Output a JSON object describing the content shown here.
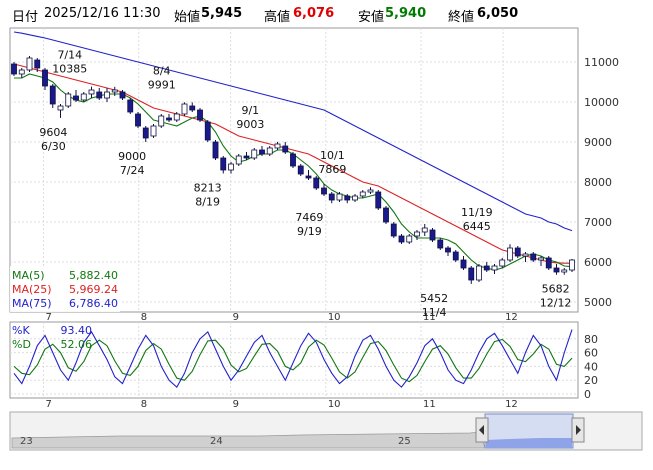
{
  "header": {
    "date_label": "日付",
    "datetime": "2025/12/16 11:30",
    "open_label": "始値",
    "open_value": "5,945",
    "high_label": "高値",
    "high_value": "6,076",
    "low_label": "安値",
    "low_value": "5,940",
    "close_label": "終値",
    "close_value": "6,050",
    "colors": {
      "high": "#e00000",
      "low": "#007a00",
      "label": "#000000"
    }
  },
  "legend": {
    "ma5_label": "MA(5)",
    "ma5_value": "5,882.40",
    "ma25_label": "MA(25)",
    "ma25_value": "5,969.24",
    "ma75_label": "MA(75)",
    "ma75_value": "6,786.40",
    "k_label": "%K",
    "k_value": "93.40",
    "d_label": "%D",
    "d_value": "52.06"
  },
  "scrollbar": {
    "labels": [
      "23",
      "24",
      "25"
    ]
  },
  "chart_data": [
    {
      "type": "candlestick",
      "title": "",
      "ylim": [
        4800,
        11800
      ],
      "yticks": [
        5000,
        6000,
        7000,
        8000,
        9000,
        10000,
        11000
      ],
      "month_labels": [
        {
          "label": "7",
          "day": 9
        },
        {
          "label": "8",
          "day": 38
        },
        {
          "label": "9",
          "day": 66
        },
        {
          "label": "10",
          "day": 95
        },
        {
          "label": "11",
          "day": 124
        },
        {
          "label": "12",
          "day": 149
        }
      ],
      "annotations": [
        {
          "text": "7/14",
          "day": 17,
          "value": 10385,
          "pos": "above"
        },
        {
          "text": "10385",
          "day": 17,
          "value": 10385,
          "pos": "above2"
        },
        {
          "text": "8/4",
          "day": 45,
          "value": 9991,
          "pos": "above"
        },
        {
          "text": "9991",
          "day": 45,
          "value": 9991,
          "pos": "above2"
        },
        {
          "text": "9/1",
          "day": 72,
          "value": 9003,
          "pos": "above"
        },
        {
          "text": "9003",
          "day": 72,
          "value": 9003,
          "pos": "above2"
        },
        {
          "text": "10/1",
          "day": 97,
          "value": 7869,
          "pos": "above"
        },
        {
          "text": "7869",
          "day": 97,
          "value": 7869,
          "pos": "above2"
        },
        {
          "text": "11/19",
          "day": 141,
          "value": 6445,
          "pos": "above"
        },
        {
          "text": "6445",
          "day": 141,
          "value": 6445,
          "pos": "above2"
        },
        {
          "text": "9604",
          "day": 12,
          "value": 9604,
          "pos": "below"
        },
        {
          "text": "6/30",
          "day": 12,
          "value": 9604,
          "pos": "below2"
        },
        {
          "text": "9000",
          "day": 36,
          "value": 9000,
          "pos": "below"
        },
        {
          "text": "7/24",
          "day": 36,
          "value": 9000,
          "pos": "below2"
        },
        {
          "text": "8213",
          "day": 59,
          "value": 8213,
          "pos": "below"
        },
        {
          "text": "8/19",
          "day": 59,
          "value": 8213,
          "pos": "below2"
        },
        {
          "text": "7469",
          "day": 90,
          "value": 7469,
          "pos": "below"
        },
        {
          "text": "9/19",
          "day": 90,
          "value": 7469,
          "pos": "below2"
        },
        {
          "text": "5452",
          "day": 128,
          "value": 5452,
          "pos": "below"
        },
        {
          "text": "11/4",
          "day": 128,
          "value": 5452,
          "pos": "below2"
        },
        {
          "text": "5682",
          "day": 165,
          "value": 5682,
          "pos": "below"
        },
        {
          "text": "12/12",
          "day": 165,
          "value": 5682,
          "pos": "below2"
        }
      ],
      "candles": [
        [
          10950,
          11000,
          10650,
          10700
        ],
        [
          10700,
          10850,
          10600,
          10800
        ],
        [
          10800,
          11150,
          10750,
          11100
        ],
        [
          11050,
          11100,
          10750,
          10850
        ],
        [
          10800,
          10850,
          10300,
          10400
        ],
        [
          10400,
          10450,
          9850,
          9950
        ],
        [
          9800,
          9950,
          9604,
          9900
        ],
        [
          9900,
          10250,
          9850,
          10200
        ],
        [
          10150,
          10300,
          10000,
          10050
        ],
        [
          10050,
          10250,
          10000,
          10200
        ],
        [
          10200,
          10385,
          10100,
          10300
        ],
        [
          10250,
          10350,
          10050,
          10100
        ],
        [
          10100,
          10350,
          10000,
          10250
        ],
        [
          10250,
          10380,
          10150,
          10300
        ],
        [
          10250,
          10300,
          10050,
          10100
        ],
        [
          10050,
          10100,
          9700,
          9750
        ],
        [
          9700,
          9750,
          9350,
          9400
        ],
        [
          9350,
          9400,
          9000,
          9100
        ],
        [
          9150,
          9450,
          9100,
          9400
        ],
        [
          9400,
          9700,
          9350,
          9650
        ],
        [
          9600,
          9700,
          9500,
          9550
        ],
        [
          9550,
          9750,
          9500,
          9700
        ],
        [
          9700,
          9991,
          9650,
          9950
        ],
        [
          9900,
          9991,
          9750,
          9800
        ],
        [
          9800,
          9850,
          9500,
          9550
        ],
        [
          9500,
          9550,
          9000,
          9050
        ],
        [
          9000,
          9050,
          8550,
          8600
        ],
        [
          8600,
          8650,
          8213,
          8300
        ],
        [
          8300,
          8500,
          8213,
          8450
        ],
        [
          8450,
          8700,
          8400,
          8650
        ],
        [
          8650,
          8750,
          8550,
          8600
        ],
        [
          8600,
          8850,
          8550,
          8800
        ],
        [
          8800,
          8900,
          8650,
          8700
        ],
        [
          8700,
          8900,
          8650,
          8850
        ],
        [
          8850,
          9003,
          8800,
          8950
        ],
        [
          8900,
          9000,
          8700,
          8750
        ],
        [
          8700,
          8750,
          8350,
          8400
        ],
        [
          8400,
          8450,
          8150,
          8200
        ],
        [
          8150,
          8300,
          8050,
          8100
        ],
        [
          8100,
          8150,
          7800,
          7850
        ],
        [
          7850,
          7950,
          7650,
          7700
        ],
        [
          7700,
          7750,
          7469,
          7550
        ],
        [
          7550,
          7750,
          7500,
          7700
        ],
        [
          7650,
          7700,
          7469,
          7550
        ],
        [
          7550,
          7700,
          7500,
          7650
        ],
        [
          7650,
          7800,
          7600,
          7750
        ],
        [
          7750,
          7869,
          7700,
          7800
        ],
        [
          7750,
          7800,
          7300,
          7350
        ],
        [
          7350,
          7400,
          6950,
          7000
        ],
        [
          6950,
          7000,
          6600,
          6650
        ],
        [
          6650,
          6700,
          6450,
          6500
        ],
        [
          6500,
          6700,
          6450,
          6650
        ],
        [
          6650,
          6800,
          6550,
          6750
        ],
        [
          6750,
          6950,
          6650,
          6850
        ],
        [
          6800,
          6850,
          6500,
          6550
        ],
        [
          6550,
          6600,
          6300,
          6350
        ],
        [
          6350,
          6400,
          6150,
          6250
        ],
        [
          6250,
          6300,
          6000,
          6050
        ],
        [
          6050,
          6150,
          5800,
          5850
        ],
        [
          5850,
          5900,
          5452,
          5550
        ],
        [
          5550,
          5950,
          5500,
          5900
        ],
        [
          5900,
          6000,
          5750,
          5800
        ],
        [
          5800,
          5950,
          5700,
          5900
        ],
        [
          5900,
          6100,
          5850,
          6050
        ],
        [
          6050,
          6445,
          6000,
          6350
        ],
        [
          6350,
          6400,
          6100,
          6150
        ],
        [
          6150,
          6250,
          6000,
          6200
        ],
        [
          6200,
          6250,
          6000,
          6050
        ],
        [
          6050,
          6150,
          5900,
          6100
        ],
        [
          6100,
          6150,
          5800,
          5850
        ],
        [
          5850,
          5950,
          5682,
          5750
        ],
        [
          5750,
          5850,
          5682,
          5800
        ],
        [
          5800,
          6076,
          5750,
          6050
        ]
      ],
      "ma5": [
        10600,
        10600,
        10700,
        10650,
        10600,
        10500,
        10300,
        10150,
        10050,
        10000,
        10100,
        10150,
        10200,
        10200,
        10200,
        10100,
        9950,
        9750,
        9550,
        9500,
        9450,
        9400,
        9500,
        9600,
        9650,
        9500,
        9250,
        8900,
        8650,
        8500,
        8550,
        8650,
        8700,
        8700,
        8800,
        8800,
        8700,
        8550,
        8400,
        8200,
        7950,
        7800,
        7700,
        7650,
        7600,
        7600,
        7650,
        7700,
        7500,
        7250,
        6950,
        6750,
        6600,
        6600,
        6600,
        6600,
        6550,
        6450,
        6250,
        6050,
        5900,
        5850,
        5800,
        5850,
        5950,
        6050,
        6150,
        6200,
        6150,
        6050,
        6000,
        5900,
        5882
      ],
      "ma25": [
        10950,
        10900,
        10850,
        10800,
        10750,
        10700,
        10650,
        10600,
        10550,
        10500,
        10450,
        10400,
        10350,
        10300,
        10250,
        10150,
        10050,
        9950,
        9850,
        9800,
        9750,
        9700,
        9650,
        9600,
        9550,
        9500,
        9450,
        9350,
        9250,
        9150,
        9100,
        9050,
        9000,
        8950,
        8900,
        8850,
        8800,
        8750,
        8700,
        8600,
        8500,
        8400,
        8300,
        8200,
        8100,
        8000,
        7950,
        7900,
        7800,
        7700,
        7600,
        7500,
        7400,
        7300,
        7200,
        7100,
        7000,
        6900,
        6800,
        6700,
        6600,
        6500,
        6400,
        6300,
        6250,
        6200,
        6150,
        6100,
        6050,
        6000,
        5980,
        5970,
        5969
      ],
      "ma75": [
        11750,
        11720,
        11680,
        11640,
        11600,
        11550,
        11500,
        11450,
        11400,
        11350,
        11300,
        11250,
        11200,
        11150,
        11100,
        11050,
        11000,
        10950,
        10900,
        10850,
        10800,
        10750,
        10700,
        10650,
        10600,
        10550,
        10500,
        10450,
        10400,
        10350,
        10300,
        10250,
        10200,
        10150,
        10100,
        10050,
        10000,
        9950,
        9900,
        9850,
        9800,
        9700,
        9600,
        9500,
        9400,
        9300,
        9200,
        9100,
        9000,
        8900,
        8800,
        8700,
        8600,
        8500,
        8400,
        8300,
        8200,
        8100,
        8000,
        7900,
        7800,
        7700,
        7600,
        7500,
        7400,
        7300,
        7200,
        7150,
        7100,
        7000,
        6950,
        6850,
        6786
      ]
    },
    {
      "type": "line",
      "title": "",
      "ylim": [
        0,
        100
      ],
      "yticks": [
        0,
        20,
        40,
        60,
        80
      ],
      "series": [
        {
          "name": "%K",
          "color": "#2222cc",
          "values": [
            30,
            15,
            40,
            70,
            85,
            60,
            35,
            20,
            45,
            75,
            90,
            70,
            50,
            25,
            15,
            40,
            65,
            85,
            70,
            40,
            20,
            10,
            30,
            60,
            80,
            90,
            65,
            40,
            20,
            35,
            55,
            75,
            85,
            60,
            40,
            20,
            45,
            70,
            88,
            75,
            50,
            30,
            15,
            25,
            55,
            78,
            85,
            65,
            40,
            20,
            10,
            25,
            45,
            70,
            80,
            60,
            35,
            20,
            15,
            35,
            60,
            80,
            88,
            70,
            50,
            30,
            60,
            85,
            70,
            40,
            20,
            60,
            93.4
          ]
        },
        {
          "name": "%D",
          "color": "#117711",
          "values": [
            40,
            30,
            28,
            42,
            65,
            72,
            60,
            38,
            33,
            47,
            70,
            78,
            70,
            48,
            30,
            27,
            40,
            63,
            73,
            65,
            43,
            23,
            20,
            33,
            57,
            77,
            78,
            65,
            42,
            32,
            37,
            55,
            72,
            73,
            62,
            40,
            35,
            45,
            68,
            78,
            71,
            52,
            32,
            23,
            32,
            53,
            73,
            76,
            63,
            42,
            23,
            18,
            27,
            47,
            65,
            70,
            58,
            38,
            23,
            23,
            37,
            58,
            76,
            79,
            69,
            50,
            47,
            58,
            72,
            65,
            43,
            40,
            52.06
          ]
        }
      ]
    }
  ]
}
